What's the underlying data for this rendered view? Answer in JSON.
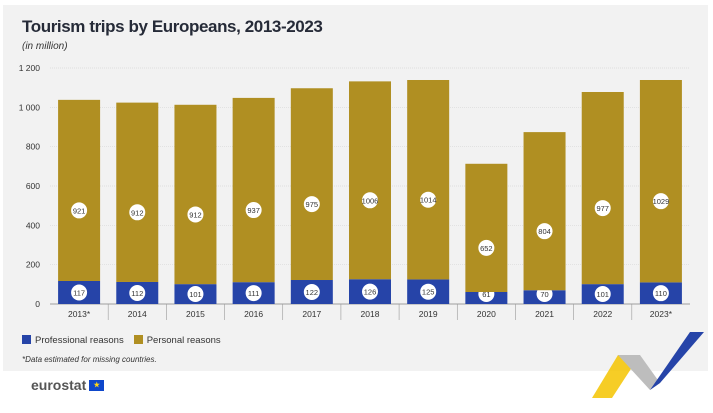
{
  "chart_data": {
    "type": "bar",
    "stacked": true,
    "title": "Tourism trips by Europeans, 2013-2023",
    "subtitle": "(in million)",
    "categories": [
      "2013*",
      "2014",
      "2015",
      "2016",
      "2017",
      "2018",
      "2019",
      "2020",
      "2021",
      "2022",
      "2023*"
    ],
    "series": [
      {
        "name": "Professional reasons",
        "color": "#2644a8",
        "values": [
          117,
          112,
          101,
          111,
          122,
          126,
          125,
          61,
          70,
          101,
          110
        ]
      },
      {
        "name": "Personal reasons",
        "color": "#b08f22",
        "values": [
          921,
          912,
          912,
          937,
          975,
          1006,
          1014,
          652,
          804,
          977,
          1029
        ]
      }
    ],
    "ylim": [
      0,
      1200
    ],
    "yticks": [
      0,
      200,
      400,
      600,
      800,
      1000,
      1200
    ],
    "ytick_labels": [
      "0",
      "200",
      "400",
      "600",
      "800",
      "1 000",
      "1 200"
    ],
    "grid": true,
    "legend": "bottom-left",
    "note": "*Data estimated for missing countries."
  },
  "branding": {
    "logo": "eurostat"
  }
}
